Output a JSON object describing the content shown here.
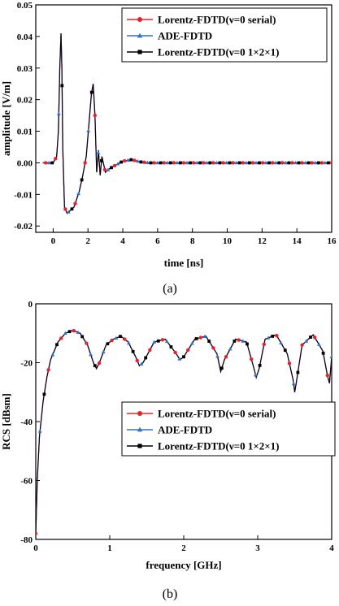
{
  "figure": {
    "captions": [
      "(a)",
      "(b)"
    ]
  },
  "colors": {
    "lorentz_serial": "#e8202a",
    "ade": "#2f6fd6",
    "lorentz_parallel": "#000000"
  },
  "chart_data": [
    {
      "type": "line",
      "xlabel": "time [ns]",
      "ylabel": "amplitude [V/m]",
      "xlim": [
        -1,
        16
      ],
      "ylim": [
        -0.022,
        0.05
      ],
      "xticks": [
        "0",
        "2",
        "4",
        "6",
        "8",
        "10",
        "12",
        "14",
        "16"
      ],
      "yticks": [
        "-0.02",
        "-0.01",
        "0.00",
        "0.01",
        "0.02",
        "0.03",
        "0.04",
        "0.05"
      ],
      "legend_position": "top-right",
      "series": [
        {
          "name": "Lorentz-FDTD(ν=0 serial)",
          "marker": "circle"
        },
        {
          "name": "ADE-FDTD",
          "marker": "triangle"
        },
        {
          "name": "Lorentz-FDTD(ν=0  1×2×1)",
          "marker": "square"
        }
      ],
      "x": [
        -0.6,
        0.0,
        0.2,
        0.3,
        0.38,
        0.45,
        0.5,
        0.55,
        0.65,
        0.8,
        1.0,
        1.2,
        1.5,
        1.7,
        1.9,
        2.05,
        2.2,
        2.3,
        2.4,
        2.5,
        2.6,
        2.7,
        2.8,
        3.0,
        3.2,
        3.5,
        4.0,
        4.5,
        5.0,
        5.5,
        6.0,
        8.0,
        10.0,
        12.0,
        14.0,
        16.0
      ],
      "y": [
        0.0,
        0.0,
        0.002,
        0.01,
        0.03,
        0.041,
        0.03,
        0.005,
        -0.014,
        -0.016,
        -0.015,
        -0.014,
        -0.009,
        -0.004,
        0.002,
        0.012,
        0.022,
        0.025,
        0.015,
        -0.003,
        0.004,
        -0.004,
        0.002,
        -0.003,
        -0.002,
        -0.001,
        0.0005,
        0.001,
        0.0003,
        0.0,
        0.0,
        0.0,
        0.0,
        0.0,
        0.0,
        0.0
      ]
    },
    {
      "type": "line",
      "xlabel": "frequency [GHz]",
      "ylabel": "RCS [dBsm]",
      "xlim": [
        0,
        4
      ],
      "ylim": [
        -80,
        0
      ],
      "xticks": [
        "0",
        "1",
        "2",
        "3",
        "4"
      ],
      "yticks": [
        "-80",
        "-60",
        "-40",
        "-20",
        "0"
      ],
      "legend_position": "center-right",
      "series": [
        {
          "name": "Lorentz-FDTD(ν=0 serial)",
          "marker": "circle"
        },
        {
          "name": "ADE-FDTD",
          "marker": "triangle"
        },
        {
          "name": "Lorentz-FDTD(ν=0  1×2×1)",
          "marker": "square"
        }
      ],
      "x": [
        0.0,
        0.02,
        0.05,
        0.1,
        0.15,
        0.2,
        0.3,
        0.4,
        0.5,
        0.6,
        0.7,
        0.78,
        0.82,
        0.86,
        0.95,
        1.05,
        1.15,
        1.25,
        1.35,
        1.4,
        1.45,
        1.6,
        1.75,
        1.9,
        1.95,
        2.0,
        2.15,
        2.3,
        2.45,
        2.5,
        2.55,
        2.7,
        2.85,
        2.95,
        2.98,
        3.02,
        3.1,
        3.25,
        3.4,
        3.48,
        3.5,
        3.52,
        3.6,
        3.75,
        3.88,
        3.94,
        3.97,
        4.0
      ],
      "y": [
        -78,
        -60,
        -45,
        -33,
        -25,
        -19,
        -13,
        -10,
        -9,
        -10,
        -14,
        -20,
        -22,
        -20,
        -14,
        -12,
        -11,
        -13,
        -18,
        -21,
        -20,
        -13,
        -12,
        -17,
        -19,
        -18,
        -12,
        -11,
        -17,
        -23,
        -19,
        -12,
        -13,
        -22,
        -25,
        -22,
        -12,
        -10.5,
        -17,
        -26,
        -30,
        -27,
        -14,
        -10.5,
        -16,
        -24,
        -27,
        -18
      ]
    }
  ]
}
